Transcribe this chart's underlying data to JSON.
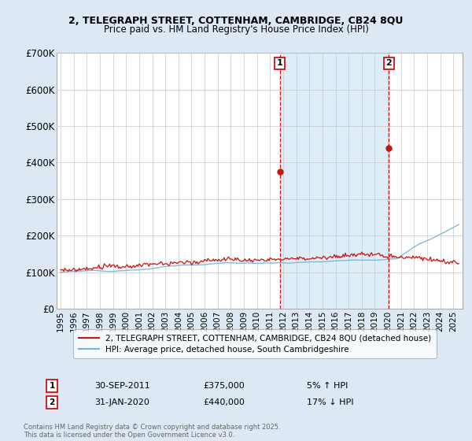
{
  "title_line1": "2, TELEGRAPH STREET, COTTENHAM, CAMBRIDGE, CB24 8QU",
  "title_line2": "Price paid vs. HM Land Registry's House Price Index (HPI)",
  "ylim": [
    0,
    700000
  ],
  "yticks": [
    0,
    100000,
    200000,
    300000,
    400000,
    500000,
    600000,
    700000
  ],
  "ytick_labels": [
    "£0",
    "£100K",
    "£200K",
    "£300K",
    "£400K",
    "£500K",
    "£600K",
    "£700K"
  ],
  "hpi_color": "#7ab3d4",
  "price_color": "#cc1111",
  "marker1_date": 2011.75,
  "marker1_price": 375000,
  "marker2_date": 2020.08,
  "marker2_price": 440000,
  "legend_label1": "2, TELEGRAPH STREET, COTTENHAM, CAMBRIDGE, CB24 8QU (detached house)",
  "legend_label2": "HPI: Average price, detached house, South Cambridgeshire",
  "marker1_text": "30-SEP-2011",
  "marker1_price_str": "£375,000",
  "marker1_pct": "5% ↑ HPI",
  "marker2_text": "31-JAN-2020",
  "marker2_price_str": "£440,000",
  "marker2_pct": "17% ↓ HPI",
  "footnote": "Contains HM Land Registry data © Crown copyright and database right 2025.\nThis data is licensed under the Open Government Licence v3.0.",
  "bg_color": "#dce9f5",
  "plot_bg": "#ffffff",
  "shade_color": "#ddeef8",
  "grid_color": "#c8c8c8"
}
